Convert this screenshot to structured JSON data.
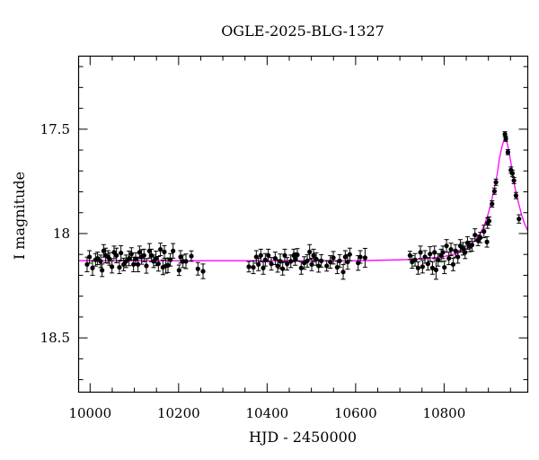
{
  "chart_data": {
    "type": "scatter",
    "title": "OGLE-2025-BLG-1327",
    "xlabel": "HJD - 2450000",
    "ylabel": "I magnitude",
    "xlim": [
      9974,
      10989
    ],
    "ylim": [
      18.76,
      17.15
    ],
    "y_inverted": true,
    "x_ticks": [
      10000,
      10200,
      10400,
      10600,
      10800
    ],
    "x_tick_labels": [
      "10000",
      "10200",
      "10400",
      "10600",
      "10800"
    ],
    "x_minor_step": 50,
    "y_ticks": [
      17.5,
      18,
      18.5
    ],
    "y_tick_labels": [
      "17.5",
      "18",
      "18.5"
    ],
    "y_minor_step": 0.1,
    "grid": false,
    "colors": {
      "points": "#000000",
      "model": "#ff00ff"
    },
    "observations": {
      "columns": [
        "hjd",
        "mag",
        "err"
      ],
      "points": [
        [
          9993.2,
          18.148,
          0.035
        ],
        [
          9998.6,
          18.112,
          0.03
        ],
        [
          10005.4,
          18.165,
          0.035
        ],
        [
          10012.2,
          18.126,
          0.03
        ],
        [
          10016.9,
          18.119,
          0.03
        ],
        [
          10023.7,
          18.133,
          0.03
        ],
        [
          10027.1,
          18.176,
          0.03
        ],
        [
          10030.5,
          18.083,
          0.03
        ],
        [
          10035.2,
          18.105,
          0.035
        ],
        [
          10040.6,
          18.112,
          0.03
        ],
        [
          10044.0,
          18.122,
          0.03
        ],
        [
          10049.4,
          18.159,
          0.03
        ],
        [
          10054.1,
          18.09,
          0.03
        ],
        [
          10059.6,
          18.105,
          0.035
        ],
        [
          10066.3,
          18.162,
          0.03
        ],
        [
          10069.7,
          18.093,
          0.035
        ],
        [
          10075.8,
          18.148,
          0.03
        ],
        [
          10081.2,
          18.133,
          0.03
        ],
        [
          10088.0,
          18.119,
          0.035
        ],
        [
          10093.4,
          18.098,
          0.03
        ],
        [
          10098.1,
          18.148,
          0.035
        ],
        [
          10102.9,
          18.122,
          0.03
        ],
        [
          10108.3,
          18.148,
          0.035
        ],
        [
          10111.7,
          18.09,
          0.03
        ],
        [
          10116.4,
          18.112,
          0.035
        ],
        [
          10121.8,
          18.105,
          0.03
        ],
        [
          10127.2,
          18.155,
          0.035
        ],
        [
          10134.0,
          18.083,
          0.035
        ],
        [
          10138.7,
          18.105,
          0.03
        ],
        [
          10143.5,
          18.133,
          0.03
        ],
        [
          10148.9,
          18.119,
          0.035
        ],
        [
          10154.3,
          18.145,
          0.035
        ],
        [
          10159.0,
          18.076,
          0.03
        ],
        [
          10164.5,
          18.162,
          0.035
        ],
        [
          10167.8,
          18.088,
          0.03
        ],
        [
          10171.2,
          18.155,
          0.035
        ],
        [
          10176.0,
          18.152,
          0.035
        ],
        [
          10181.4,
          18.126,
          0.03
        ],
        [
          10187.5,
          18.083,
          0.035
        ],
        [
          10201.0,
          18.176,
          0.025
        ],
        [
          10204.4,
          18.112,
          0.03
        ],
        [
          10209.8,
          18.133,
          0.03
        ],
        [
          10216.6,
          18.133,
          0.035
        ],
        [
          10228.8,
          18.108,
          0.025
        ],
        [
          10243.6,
          18.169,
          0.03
        ],
        [
          10255.2,
          18.181,
          0.035
        ],
        [
          10358.7,
          18.159,
          0.025
        ],
        [
          10368.9,
          18.162,
          0.03
        ],
        [
          10375.6,
          18.112,
          0.03
        ],
        [
          10380.4,
          18.148,
          0.03
        ],
        [
          10385.8,
          18.105,
          0.03
        ],
        [
          10391.2,
          18.165,
          0.03
        ],
        [
          10395.9,
          18.126,
          0.03
        ],
        [
          10402.7,
          18.105,
          0.03
        ],
        [
          10409.5,
          18.145,
          0.03
        ],
        [
          10418.3,
          18.119,
          0.03
        ],
        [
          10423.7,
          18.155,
          0.03
        ],
        [
          10429.8,
          18.133,
          0.035
        ],
        [
          10435.2,
          18.169,
          0.03
        ],
        [
          10439.9,
          18.105,
          0.03
        ],
        [
          10445.3,
          18.145,
          0.03
        ],
        [
          10453.5,
          18.133,
          0.03
        ],
        [
          10460.2,
          18.105,
          0.03
        ],
        [
          10463.6,
          18.122,
          0.03
        ],
        [
          10468.3,
          18.102,
          0.03
        ],
        [
          10477.1,
          18.165,
          0.03
        ],
        [
          10483.9,
          18.141,
          0.03
        ],
        [
          10490.7,
          18.131,
          0.03
        ],
        [
          10496.1,
          18.088,
          0.035
        ],
        [
          10500.8,
          18.148,
          0.03
        ],
        [
          10504.9,
          18.105,
          0.03
        ],
        [
          10511.0,
          18.122,
          0.03
        ],
        [
          10516.4,
          18.155,
          0.03
        ],
        [
          10522.5,
          18.131,
          0.03
        ],
        [
          10534.7,
          18.155,
          0.025
        ],
        [
          10542.8,
          18.136,
          0.03
        ],
        [
          10549.6,
          18.116,
          0.03
        ],
        [
          10558.4,
          18.162,
          0.03
        ],
        [
          10563.8,
          18.131,
          0.03
        ],
        [
          10571.9,
          18.184,
          0.035
        ],
        [
          10576.6,
          18.112,
          0.03
        ],
        [
          10582.0,
          18.136,
          0.035
        ],
        [
          10586.8,
          18.1,
          0.03
        ],
        [
          10605.7,
          18.141,
          0.035
        ],
        [
          10610.5,
          18.112,
          0.03
        ],
        [
          10621.3,
          18.116,
          0.045
        ],
        [
          10722.8,
          18.105,
          0.02
        ],
        [
          10727.6,
          18.136,
          0.03
        ],
        [
          10734.3,
          18.126,
          0.03
        ],
        [
          10741.1,
          18.165,
          0.03
        ],
        [
          10746.5,
          18.09,
          0.03
        ],
        [
          10751.2,
          18.159,
          0.03
        ],
        [
          10756.7,
          18.112,
          0.03
        ],
        [
          10763.4,
          18.145,
          0.03
        ],
        [
          10768.2,
          18.098,
          0.035
        ],
        [
          10773.6,
          18.165,
          0.03
        ],
        [
          10778.3,
          18.09,
          0.03
        ],
        [
          10781.7,
          18.174,
          0.045
        ],
        [
          10786.4,
          18.126,
          0.03
        ],
        [
          10793.2,
          18.105,
          0.03
        ],
        [
          10797.3,
          18.09,
          0.03
        ],
        [
          10800.7,
          18.162,
          0.03
        ],
        [
          10805.4,
          18.059,
          0.03
        ],
        [
          10810.8,
          18.119,
          0.03
        ],
        [
          10815.5,
          18.076,
          0.03
        ],
        [
          10820.3,
          18.148,
          0.03
        ],
        [
          10825.7,
          18.083,
          0.03
        ],
        [
          10831.1,
          18.112,
          0.03
        ],
        [
          10836.5,
          18.059,
          0.03
        ],
        [
          10842.6,
          18.073,
          0.03
        ],
        [
          10847.4,
          18.09,
          0.03
        ],
        [
          10852.8,
          18.045,
          0.03
        ],
        [
          10858.2,
          18.062,
          0.025
        ],
        [
          10862.9,
          18.055,
          0.03
        ],
        [
          10869.7,
          18.007,
          0.03
        ],
        [
          10876.5,
          18.033,
          0.025
        ],
        [
          10881.9,
          18.019,
          0.025
        ],
        [
          10890.0,
          17.99,
          0.03
        ],
        [
          10896.8,
          18.04,
          0.025
        ],
        [
          10898.1,
          17.95,
          0.025
        ],
        [
          10901.5,
          17.94,
          0.02
        ],
        [
          10908.3,
          17.858,
          0.015
        ],
        [
          10913.7,
          17.797,
          0.015
        ],
        [
          10917.1,
          17.754,
          0.015
        ],
        [
          10937.4,
          17.524,
          0.012
        ],
        [
          10939.4,
          17.546,
          0.012
        ],
        [
          10944.1,
          17.61,
          0.012
        ],
        [
          10950.9,
          17.696,
          0.015
        ],
        [
          10954.3,
          17.711,
          0.015
        ],
        [
          10957.7,
          17.746,
          0.015
        ],
        [
          10962.4,
          17.818,
          0.015
        ],
        [
          10969.2,
          17.93,
          0.02
        ]
      ]
    },
    "model": {
      "columns": [
        "hjd",
        "mag"
      ],
      "points": [
        [
          9974,
          18.13
        ],
        [
          10600,
          18.13
        ],
        [
          10700,
          18.126
        ],
        [
          10750,
          18.122
        ],
        [
          10800,
          18.11
        ],
        [
          10830,
          18.095
        ],
        [
          10850,
          18.072
        ],
        [
          10865,
          18.045
        ],
        [
          10880,
          18.004
        ],
        [
          10890,
          17.965
        ],
        [
          10900,
          17.902
        ],
        [
          10908,
          17.835
        ],
        [
          10915,
          17.77
        ],
        [
          10920,
          17.715
        ],
        [
          10925,
          17.639
        ],
        [
          10930,
          17.59
        ],
        [
          10937,
          17.538
        ],
        [
          10943,
          17.57
        ],
        [
          10950,
          17.65
        ],
        [
          10955,
          17.715
        ],
        [
          10960,
          17.78
        ],
        [
          10967,
          17.845
        ],
        [
          10975,
          17.91
        ],
        [
          10982,
          17.955
        ],
        [
          10989,
          17.987
        ]
      ]
    }
  }
}
